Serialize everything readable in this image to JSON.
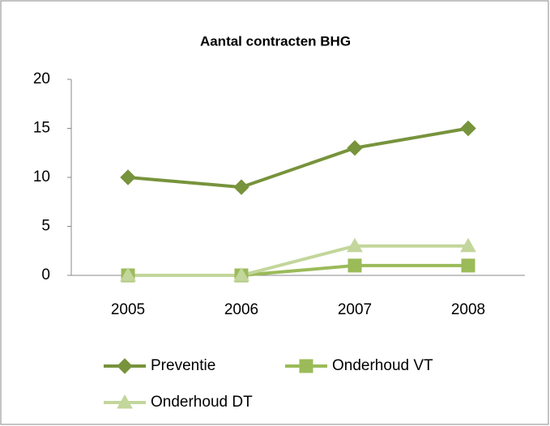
{
  "chart_data": {
    "type": "line",
    "title": "Aantal contracten BHG",
    "categories": [
      "2005",
      "2006",
      "2007",
      "2008"
    ],
    "series": [
      {
        "name": "Preventie",
        "color": "#77933c",
        "marker": "diamond",
        "values": [
          10,
          9,
          13,
          15
        ]
      },
      {
        "name": "Onderhoud VT",
        "color": "#9bbb59",
        "marker": "square",
        "values": [
          0,
          0,
          1,
          1
        ]
      },
      {
        "name": "Onderhoud DT",
        "color": "#c3d69b",
        "marker": "triangle",
        "values": [
          0,
          0,
          3,
          3
        ]
      }
    ],
    "ylim": [
      0,
      20
    ],
    "yticks": [
      0,
      5,
      10,
      15,
      20
    ],
    "grid": false,
    "legend": "bottom"
  }
}
